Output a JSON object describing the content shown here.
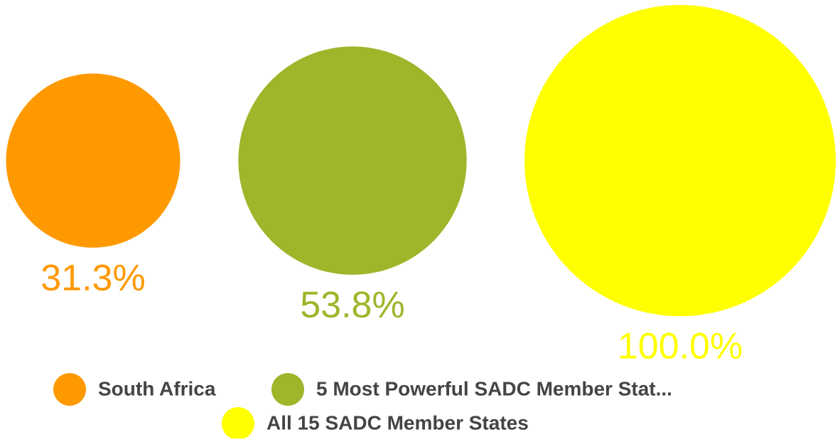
{
  "chart_data": {
    "type": "bubble",
    "categories": [
      "South Africa",
      "5 Most Powerful SADC Member Stat...",
      "All 15 SADC Member States"
    ],
    "values": [
      31.3,
      53.8,
      100.0
    ],
    "value_labels": [
      "31.3%",
      "53.8%",
      "100.0%"
    ],
    "colors": [
      "#ff9900",
      "#9fb52a",
      "#ffff00"
    ]
  }
}
